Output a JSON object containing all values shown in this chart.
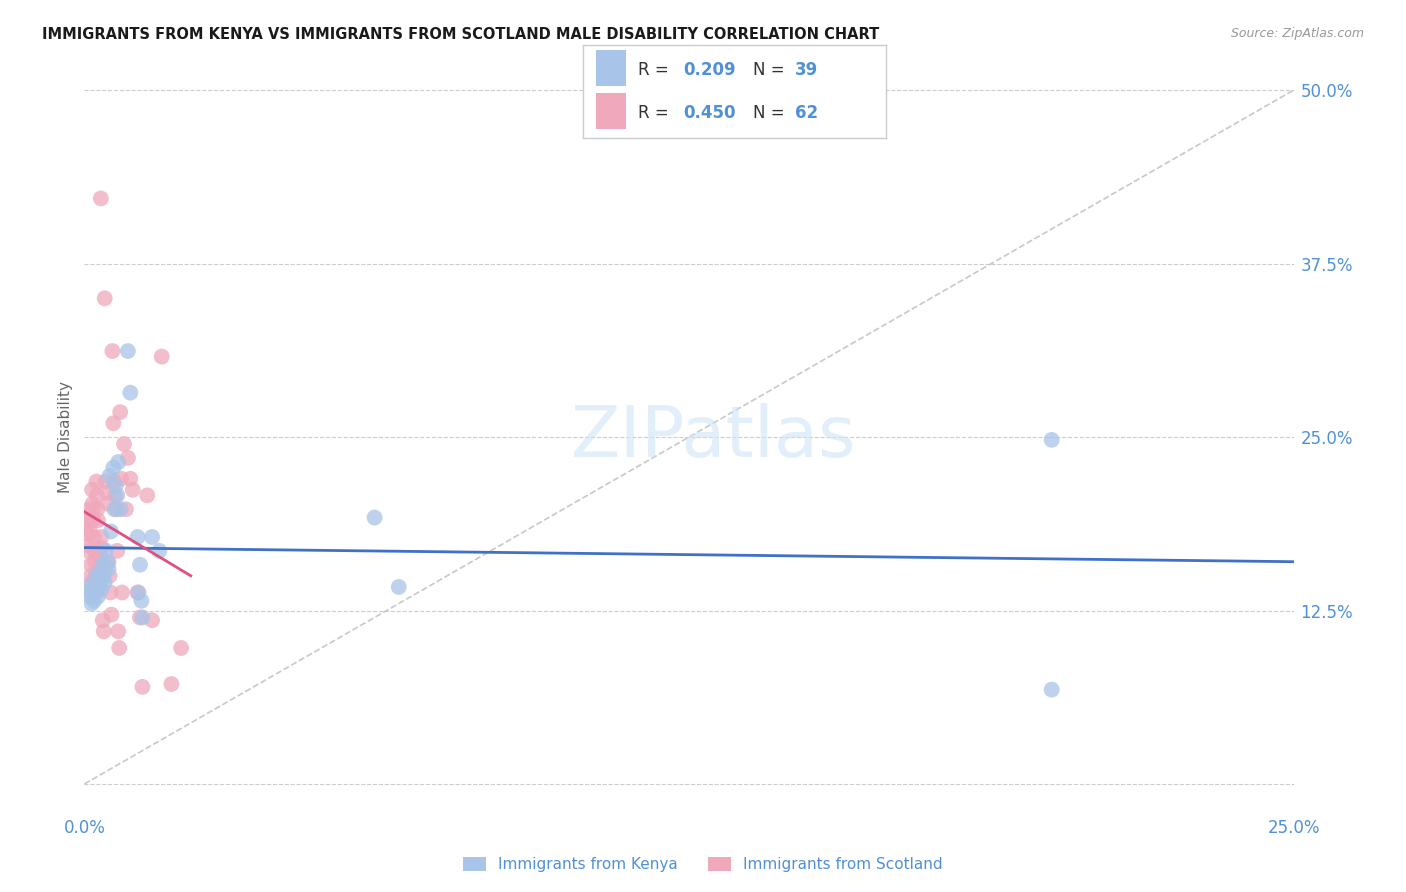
{
  "title": "IMMIGRANTS FROM KENYA VS IMMIGRANTS FROM SCOTLAND MALE DISABILITY CORRELATION CHART",
  "source": "Source: ZipAtlas.com",
  "ylabel": "Male Disability",
  "xlim": [
    0,
    0.25
  ],
  "ylim": [
    -0.02,
    0.52
  ],
  "xticks": [
    0.0,
    0.05,
    0.1,
    0.15,
    0.2,
    0.25
  ],
  "xticklabels": [
    "0.0%",
    "",
    "",
    "",
    "",
    "25.0%"
  ],
  "yticks": [
    0.0,
    0.125,
    0.25,
    0.375,
    0.5
  ],
  "yticklabels_right": [
    "",
    "12.5%",
    "25.0%",
    "37.5%",
    "50.0%"
  ],
  "kenya_color": "#a8c4e8",
  "scotland_color": "#f0a8bc",
  "kenya_R": 0.209,
  "kenya_N": 39,
  "scotland_R": 0.45,
  "scotland_N": 62,
  "kenya_line_color": "#4070c8",
  "scotland_line_color": "#e05080",
  "diagonal_color": "#c8c8c8",
  "background_color": "#ffffff",
  "grid_color": "#cccccc",
  "axis_label_color": "#5090d8",
  "title_color": "#1a1a1a",
  "watermark_text": "ZIPatlas",
  "kenya_points": [
    [
      0.0008,
      0.142
    ],
    [
      0.001,
      0.138
    ],
    [
      0.0012,
      0.135
    ],
    [
      0.0015,
      0.13
    ],
    [
      0.0018,
      0.14
    ],
    [
      0.002,
      0.132
    ],
    [
      0.0022,
      0.148
    ],
    [
      0.0025,
      0.142
    ],
    [
      0.0028,
      0.135
    ],
    [
      0.003,
      0.152
    ],
    [
      0.0032,
      0.145
    ],
    [
      0.0035,
      0.14
    ],
    [
      0.0038,
      0.158
    ],
    [
      0.004,
      0.15
    ],
    [
      0.0042,
      0.145
    ],
    [
      0.0045,
      0.168
    ],
    [
      0.0048,
      0.16
    ],
    [
      0.005,
      0.155
    ],
    [
      0.0052,
      0.222
    ],
    [
      0.0055,
      0.182
    ],
    [
      0.006,
      0.228
    ],
    [
      0.0062,
      0.198
    ],
    [
      0.0065,
      0.215
    ],
    [
      0.0068,
      0.208
    ],
    [
      0.007,
      0.232
    ],
    [
      0.0075,
      0.198
    ],
    [
      0.009,
      0.312
    ],
    [
      0.0095,
      0.282
    ],
    [
      0.011,
      0.178
    ],
    [
      0.0112,
      0.138
    ],
    [
      0.0115,
      0.158
    ],
    [
      0.0118,
      0.132
    ],
    [
      0.012,
      0.12
    ],
    [
      0.014,
      0.178
    ],
    [
      0.0155,
      0.168
    ],
    [
      0.06,
      0.192
    ],
    [
      0.065,
      0.142
    ],
    [
      0.2,
      0.248
    ],
    [
      0.2,
      0.068
    ]
  ],
  "scotland_points": [
    [
      0.0005,
      0.188
    ],
    [
      0.0006,
      0.18
    ],
    [
      0.0007,
      0.172
    ],
    [
      0.0008,
      0.168
    ],
    [
      0.001,
      0.198
    ],
    [
      0.0011,
      0.19
    ],
    [
      0.0012,
      0.182
    ],
    [
      0.0013,
      0.158
    ],
    [
      0.0014,
      0.15
    ],
    [
      0.0015,
      0.145
    ],
    [
      0.0016,
      0.212
    ],
    [
      0.0017,
      0.202
    ],
    [
      0.0018,
      0.198
    ],
    [
      0.0019,
      0.19
    ],
    [
      0.002,
      0.178
    ],
    [
      0.0021,
      0.168
    ],
    [
      0.0022,
      0.16
    ],
    [
      0.0023,
      0.15
    ],
    [
      0.0024,
      0.138
    ],
    [
      0.0025,
      0.218
    ],
    [
      0.0026,
      0.208
    ],
    [
      0.0027,
      0.198
    ],
    [
      0.0028,
      0.19
    ],
    [
      0.003,
      0.168
    ],
    [
      0.0032,
      0.158
    ],
    [
      0.0034,
      0.422
    ],
    [
      0.0035,
      0.178
    ],
    [
      0.0036,
      0.17
    ],
    [
      0.0038,
      0.118
    ],
    [
      0.004,
      0.11
    ],
    [
      0.0042,
      0.35
    ],
    [
      0.0044,
      0.218
    ],
    [
      0.0046,
      0.21
    ],
    [
      0.0048,
      0.202
    ],
    [
      0.005,
      0.16
    ],
    [
      0.0052,
      0.15
    ],
    [
      0.0054,
      0.138
    ],
    [
      0.0056,
      0.122
    ],
    [
      0.0058,
      0.312
    ],
    [
      0.006,
      0.26
    ],
    [
      0.0062,
      0.218
    ],
    [
      0.0064,
      0.208
    ],
    [
      0.0066,
      0.198
    ],
    [
      0.0068,
      0.168
    ],
    [
      0.007,
      0.11
    ],
    [
      0.0072,
      0.098
    ],
    [
      0.0074,
      0.268
    ],
    [
      0.0076,
      0.22
    ],
    [
      0.0078,
      0.138
    ],
    [
      0.0082,
      0.245
    ],
    [
      0.0086,
      0.198
    ],
    [
      0.009,
      0.235
    ],
    [
      0.0095,
      0.22
    ],
    [
      0.01,
      0.212
    ],
    [
      0.011,
      0.138
    ],
    [
      0.0115,
      0.12
    ],
    [
      0.012,
      0.07
    ],
    [
      0.013,
      0.208
    ],
    [
      0.014,
      0.118
    ],
    [
      0.016,
      0.308
    ],
    [
      0.018,
      0.072
    ],
    [
      0.02,
      0.098
    ]
  ]
}
